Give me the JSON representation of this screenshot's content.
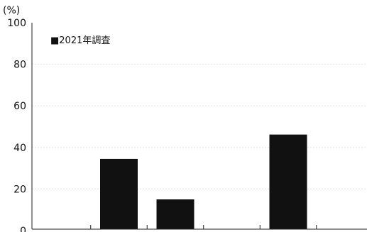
{
  "chart_data": {
    "type": "bar",
    "ylabel": "(%)",
    "ylim": [
      0,
      100
    ],
    "yticks": [
      0,
      20,
      40,
      60,
      80,
      100
    ],
    "y_tick_labels": [
      "0",
      "20",
      "40",
      "60",
      "80",
      "100"
    ],
    "grid": true,
    "legend_position": "top-left",
    "bar_color": "#111111",
    "categories": [
      "",
      "",
      "",
      "",
      "",
      ""
    ],
    "series": [
      {
        "name": "■2021年調査",
        "values": [
          0.5,
          34.5,
          15,
          0.5,
          46.2,
          0
        ]
      }
    ]
  }
}
